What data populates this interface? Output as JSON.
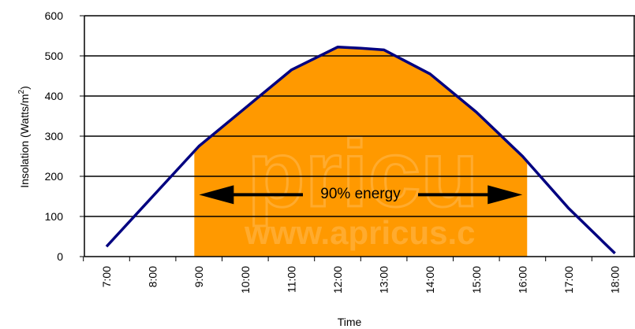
{
  "chart_data": {
    "type": "area",
    "xlabel": "Time",
    "ylabel": "Insolation (Watts/m",
    "ylabel_sup": "2",
    "ylabel_close": ")",
    "ylim": [
      0,
      600
    ],
    "yticks": [
      0,
      100,
      200,
      300,
      400,
      500,
      600
    ],
    "categories": [
      "7:00",
      "8:00",
      "9:00",
      "10:00",
      "11:00",
      "12:00",
      "13:00",
      "14:00",
      "15:00",
      "16:00",
      "17:00",
      "18:00"
    ],
    "series": [
      {
        "x": [
          7.0,
          8.0,
          9.0,
          10.0,
          11.0,
          12.0,
          12.5,
          13.0,
          14.0,
          15.0,
          16.0,
          17.0,
          18.0
        ],
        "values": [
          25,
          150,
          275,
          370,
          465,
          522,
          519,
          515,
          455,
          360,
          250,
          120,
          8
        ]
      }
    ],
    "shaded_region": {
      "x_start": 8.9,
      "x_end": 16.1,
      "color": "#ff9900"
    },
    "line_color": "#000080",
    "grid": true,
    "annotation": {
      "text": "90% energy",
      "arrow": "double",
      "y": 158
    },
    "watermark": {
      "text": "www.apricus.c",
      "logo_text": "pricu"
    }
  }
}
